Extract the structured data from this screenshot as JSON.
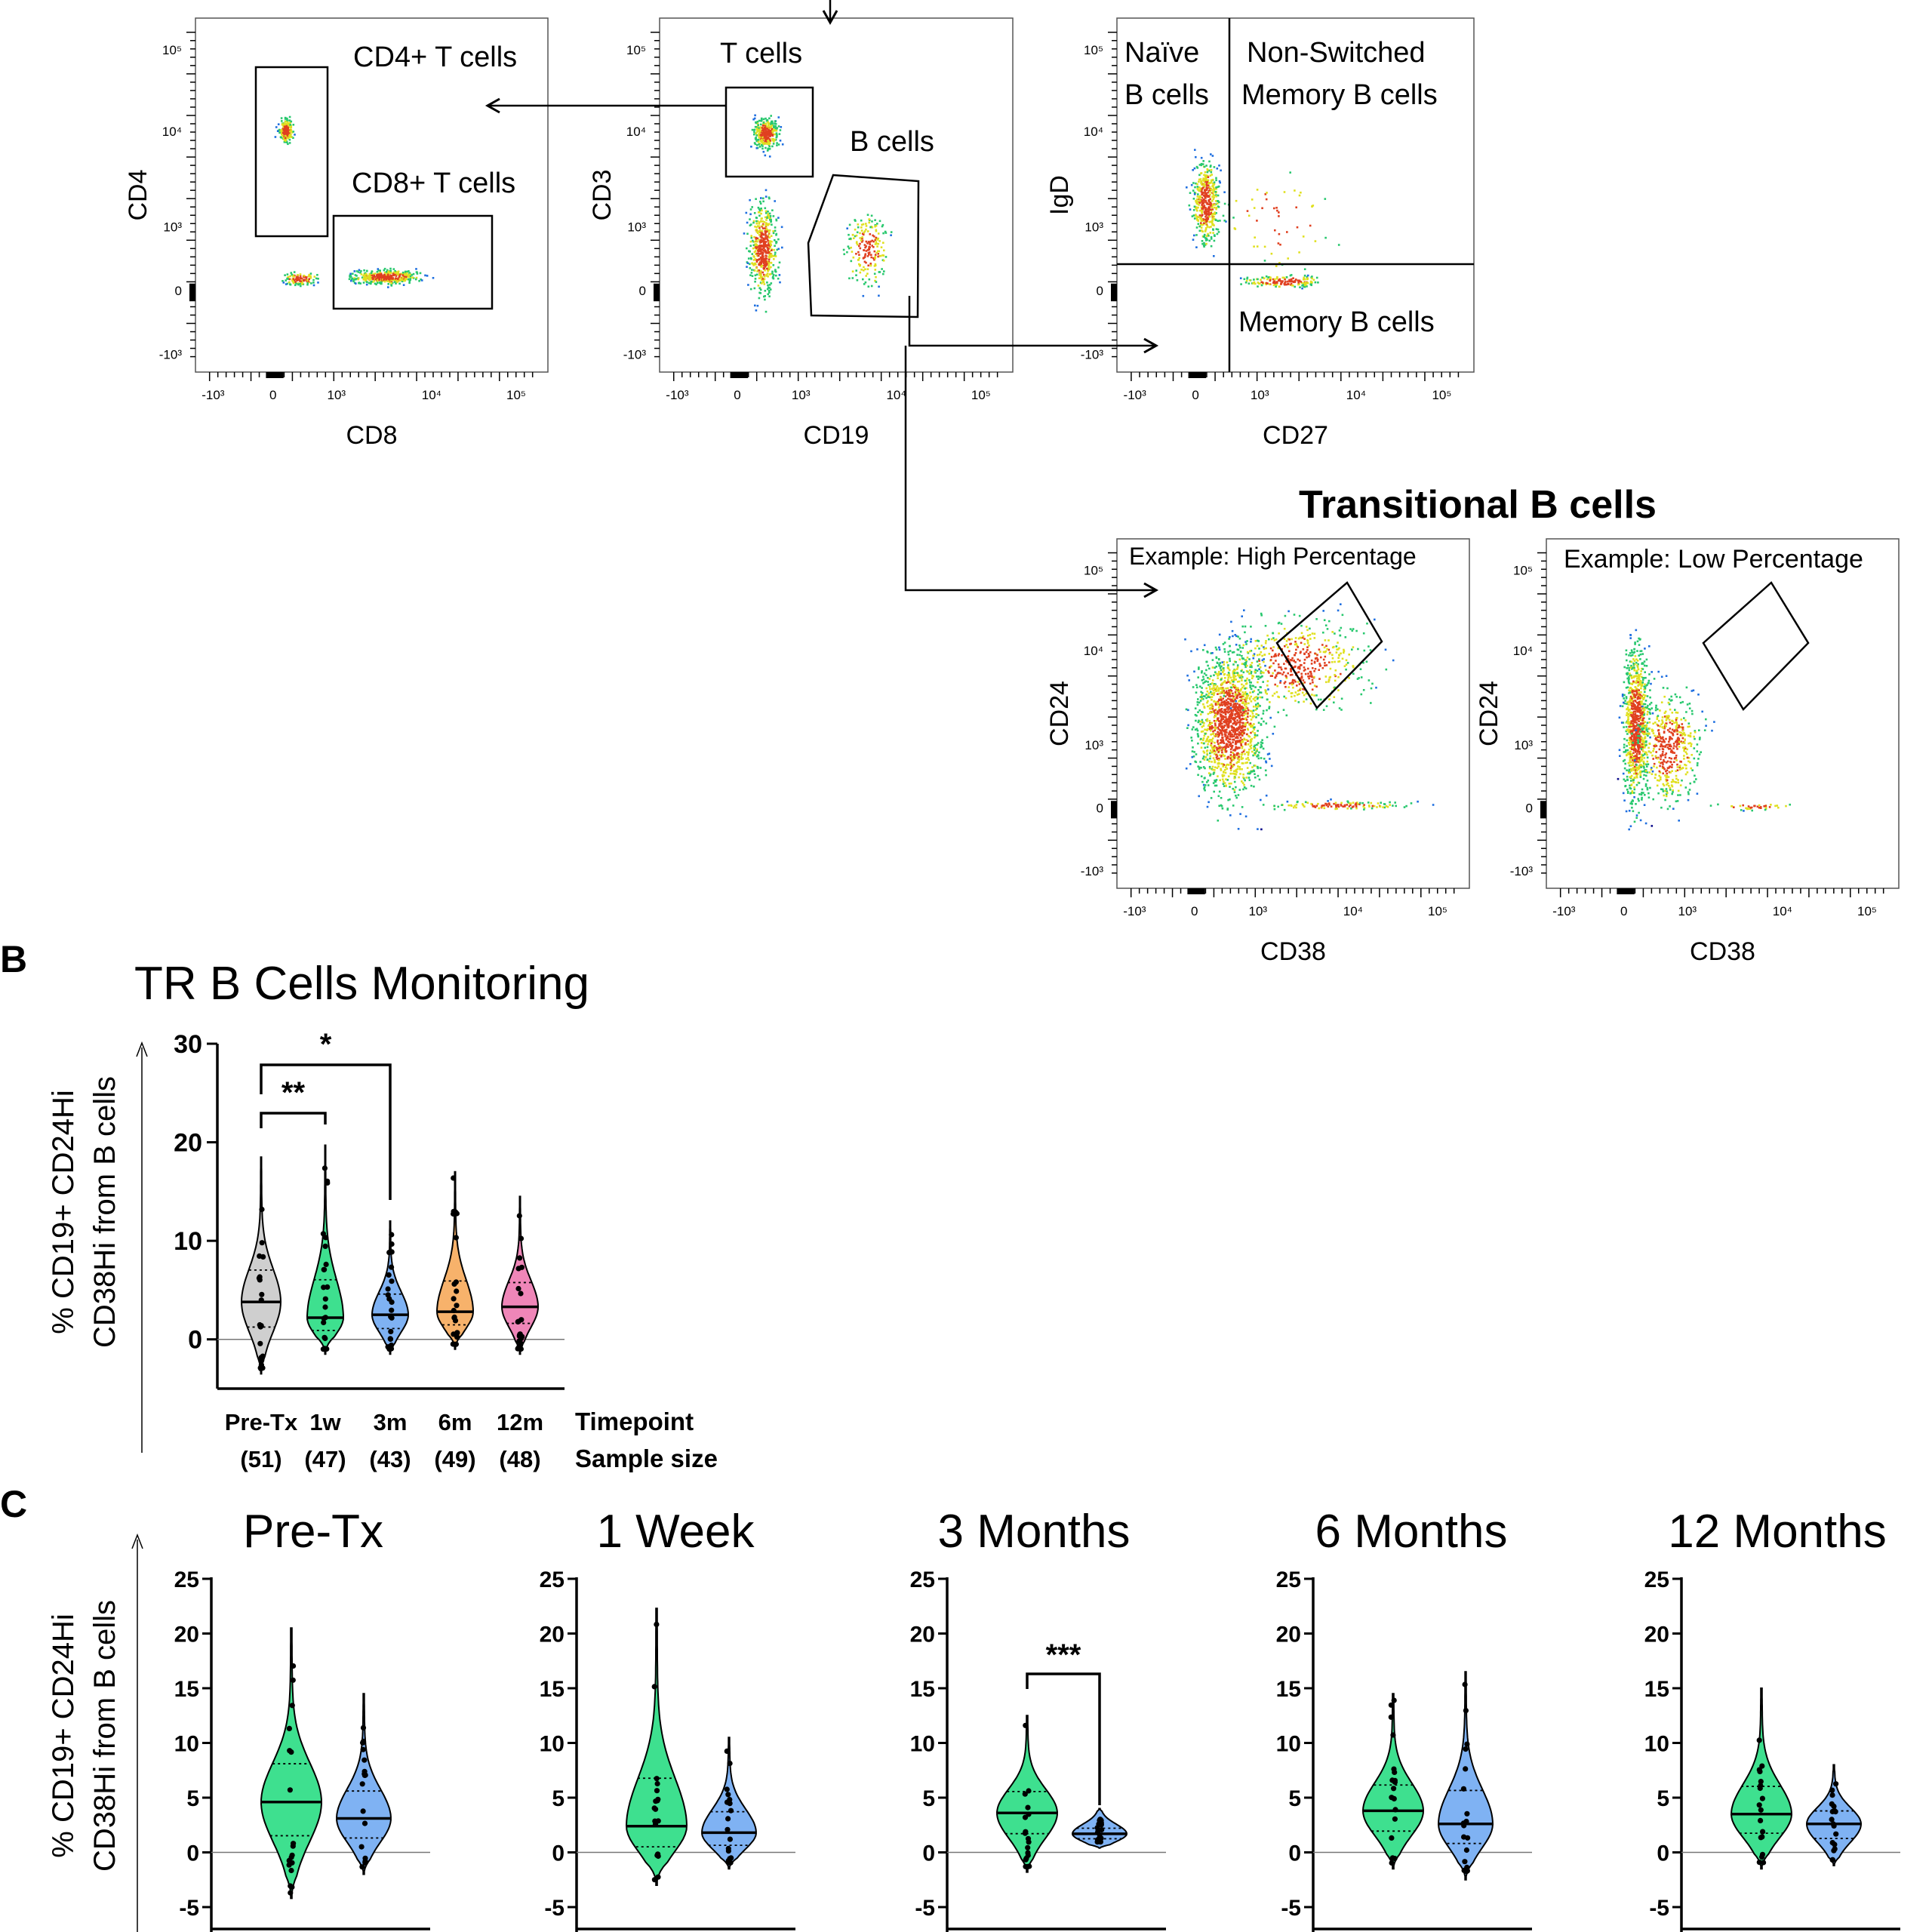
{
  "figure": {
    "panel_b_letter": "B",
    "panel_c_letter": "C"
  },
  "colors": {
    "gray": "#cfcfcf",
    "green": "#3ee08f",
    "blue": "#7fb2f3",
    "orange": "#f7b26b",
    "pink": "#ef86b8",
    "dot_dark": "#0a0a8a",
    "dot_mid": "#1f6fe0",
    "dot_green": "#28c86e",
    "dot_yellow": "#e0e020",
    "dot_red": "#e04020"
  },
  "flow": {
    "ticks": [
      "-10³",
      "0",
      "10³",
      "10⁴",
      "10⁵"
    ],
    "transitional_title": "Transitional B cells",
    "plots": [
      {
        "id": "cd4cd8",
        "xlabel": "CD8",
        "ylabel": "CD4",
        "gates": [
          "CD4+ T cells",
          "CD8+ T cells"
        ]
      },
      {
        "id": "cd3cd19",
        "xlabel": "CD19",
        "ylabel": "CD3",
        "gates": [
          "T cells",
          "B cells"
        ]
      },
      {
        "id": "igdcd27",
        "xlabel": "CD27",
        "ylabel": "IgD",
        "quadrants": [
          "Naïve",
          "B cells",
          "Non-Switched",
          "Memory B cells",
          "Memory B cells"
        ]
      },
      {
        "id": "high",
        "xlabel": "CD38",
        "ylabel": "CD24",
        "example": "Example: High Percentage"
      },
      {
        "id": "low",
        "xlabel": "CD38",
        "ylabel": "CD24",
        "example": "Example: Low Percentage"
      }
    ]
  },
  "chart_data": [
    {
      "type": "violin",
      "title": "TR B Cells Monitoring",
      "ylabel_lines": [
        "% CD19+ CD24Hi",
        "CD38Hi from B cells"
      ],
      "ylim": [
        -5,
        30
      ],
      "yticks": [
        0,
        10,
        20,
        30
      ],
      "categories": [
        "Pre-Tx",
        "1w",
        "3m",
        "6m",
        "12m"
      ],
      "sample_sizes": [
        "(51)",
        "(47)",
        "(43)",
        "(49)",
        "(48)"
      ],
      "row_labels": [
        "Timepoint",
        "Sample size"
      ],
      "colors": [
        "gray",
        "green",
        "blue",
        "orange",
        "pink"
      ],
      "medians": [
        3.8,
        2.2,
        2.5,
        2.8,
        3.3
      ],
      "ranges": [
        [
          -3.5,
          18.5
        ],
        [
          -1.5,
          19.7
        ],
        [
          -1.5,
          12
        ],
        [
          -1,
          17
        ],
        [
          -1.5,
          14.5
        ]
      ],
      "significance": [
        {
          "from": 0,
          "to": 1,
          "label": "**"
        },
        {
          "from": 0,
          "to": 2,
          "label": "*"
        }
      ]
    },
    {
      "type": "violin",
      "title": "Pre-Tx",
      "ylim": [
        -5,
        25
      ],
      "yticks": [
        -5,
        0,
        5,
        10,
        15,
        20,
        25
      ],
      "groups": [
        "green",
        "blue"
      ],
      "medians": [
        4.6,
        3.1
      ],
      "ranges": [
        [
          -4.2,
          20.5
        ],
        [
          -2,
          14.5
        ]
      ]
    },
    {
      "type": "violin",
      "title": "1 Week",
      "ylim": [
        -5,
        25
      ],
      "yticks": [
        -5,
        0,
        5,
        10,
        15,
        20,
        25
      ],
      "groups": [
        "green",
        "blue"
      ],
      "medians": [
        2.4,
        1.8
      ],
      "ranges": [
        [
          -3,
          22.3
        ],
        [
          -1.5,
          10.5
        ]
      ]
    },
    {
      "type": "violin",
      "title": "3 Months",
      "ylim": [
        -5,
        25
      ],
      "yticks": [
        -5,
        0,
        5,
        10,
        15,
        20,
        25
      ],
      "groups": [
        "green",
        "blue"
      ],
      "medians": [
        3.6,
        1.7
      ],
      "ranges": [
        [
          -1.8,
          12.5
        ],
        [
          0.4,
          4
        ]
      ],
      "significance": [
        {
          "from": 0,
          "to": 1,
          "label": "***"
        }
      ]
    },
    {
      "type": "violin",
      "title": "6 Months",
      "ylim": [
        -5,
        25
      ],
      "yticks": [
        -5,
        0,
        5,
        10,
        15,
        20,
        25
      ],
      "groups": [
        "green",
        "blue"
      ],
      "medians": [
        3.8,
        2.6
      ],
      "ranges": [
        [
          -1.5,
          14.5
        ],
        [
          -2.5,
          16.5
        ]
      ]
    },
    {
      "type": "violin",
      "title": "12 Months",
      "ylim": [
        -5,
        25
      ],
      "yticks": [
        -5,
        0,
        5,
        10,
        15,
        20,
        25
      ],
      "groups": [
        "green",
        "blue"
      ],
      "medians": [
        3.5,
        2.6
      ],
      "ranges": [
        [
          -1.5,
          15
        ],
        [
          -1.2,
          8
        ]
      ]
    }
  ],
  "panel_c_ylabel_lines": [
    "% CD19+ CD24Hi",
    "CD38Hi from B cells"
  ]
}
